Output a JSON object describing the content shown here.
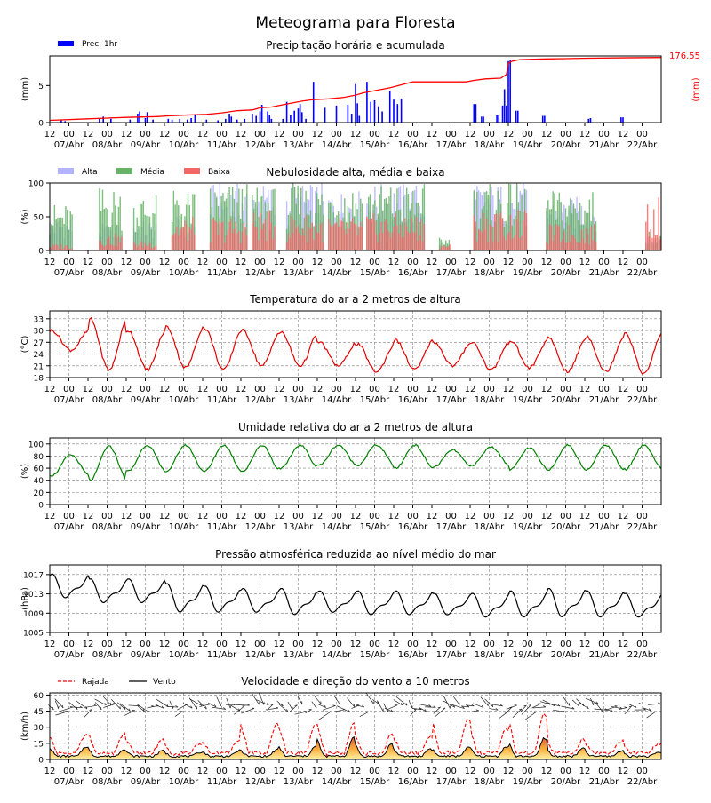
{
  "main_title": "Meteograma para Floresta",
  "colors": {
    "precip_bar": "#0000ff",
    "precip_line": "#ff0000",
    "cloud_high": "#b3b3ff",
    "cloud_mid": "#66b266",
    "cloud_low": "#f26666",
    "temperature": "#e00000",
    "humidity": "#008000",
    "pressure": "#000000",
    "gust": "#ff0000",
    "wind": "#000000",
    "grid": "#808080"
  },
  "time_axis": {
    "start": "2024-04-06 12:00",
    "end": "2024-04-22 12:00",
    "hour_ticks": [
      "12",
      "00",
      "12",
      "00",
      "12",
      "00",
      "12",
      "00",
      "12",
      "00",
      "12",
      "00",
      "12",
      "00",
      "12",
      "00",
      "12",
      "00",
      "12",
      "00",
      "12",
      "00",
      "12",
      "00",
      "12",
      "00",
      "12",
      "00",
      "12",
      "00",
      "12",
      "00"
    ],
    "day_labels": [
      "07/Abr",
      "08/Abr",
      "09/Abr",
      "10/Abr",
      "11/Abr",
      "12/Abr",
      "13/Abr",
      "14/Abr",
      "15/Abr",
      "16/Abr",
      "17/Abr",
      "18/Abr",
      "19/Abr",
      "20/Abr",
      "21/Abr",
      "22/Abr"
    ]
  },
  "chart_data": [
    {
      "id": "precip",
      "type": "bar",
      "title": "Precipitação horária e acumulada",
      "ylabel": "(mm)",
      "ylabel_right": "(mm)",
      "ylim": [
        0,
        9
      ],
      "yticks": [
        0,
        5
      ],
      "total_label": "176.55",
      "legend": [
        "Prec. 1hr"
      ],
      "x_unit": "days since 2024-04-06 12:00",
      "bars": [
        [
          0.3,
          0.3
        ],
        [
          0.4,
          0.2
        ],
        [
          1.3,
          0.6
        ],
        [
          1.4,
          0.8
        ],
        [
          1.6,
          0.5
        ],
        [
          2.1,
          0.4
        ],
        [
          2.3,
          1.2
        ],
        [
          2.35,
          1.5
        ],
        [
          2.5,
          0.6
        ],
        [
          2.55,
          1.4
        ],
        [
          2.7,
          0.4
        ],
        [
          3.1,
          0.5
        ],
        [
          3.2,
          0.4
        ],
        [
          3.4,
          0.5
        ],
        [
          3.6,
          0.4
        ],
        [
          3.7,
          0.6
        ],
        [
          3.8,
          1.0
        ],
        [
          4.1,
          0.4
        ],
        [
          4.4,
          0.3
        ],
        [
          4.6,
          0.5
        ],
        [
          4.7,
          1.2
        ],
        [
          4.75,
          0.8
        ],
        [
          4.9,
          0.4
        ],
        [
          5.1,
          0.5
        ],
        [
          5.3,
          1.2
        ],
        [
          5.4,
          0.9
        ],
        [
          5.5,
          1.5
        ],
        [
          5.55,
          2.4
        ],
        [
          5.7,
          1.5
        ],
        [
          5.75,
          1.0
        ],
        [
          5.8,
          0.5
        ],
        [
          6.1,
          0.5
        ],
        [
          6.2,
          2.8
        ],
        [
          6.3,
          1.0
        ],
        [
          6.4,
          1.6
        ],
        [
          6.5,
          1.9
        ],
        [
          6.55,
          2.5
        ],
        [
          6.6,
          1.4
        ],
        [
          6.7,
          0.5
        ],
        [
          6.9,
          5.5
        ],
        [
          7.2,
          2.0
        ],
        [
          7.5,
          2.3
        ],
        [
          7.8,
          2.4
        ],
        [
          7.9,
          1.2
        ],
        [
          8.0,
          5.2
        ],
        [
          8.05,
          2.6
        ],
        [
          8.1,
          0.9
        ],
        [
          8.3,
          5.5
        ],
        [
          8.4,
          2.8
        ],
        [
          8.5,
          3.0
        ],
        [
          8.6,
          2.2
        ],
        [
          8.7,
          1.5
        ],
        [
          8.9,
          4.2
        ],
        [
          9.0,
          3.1
        ],
        [
          9.1,
          2.5
        ],
        [
          9.2,
          3.2
        ],
        [
          11.1,
          2.5
        ],
        [
          11.15,
          2.5
        ],
        [
          11.3,
          0.8
        ],
        [
          11.35,
          0.8
        ],
        [
          11.7,
          1.0
        ],
        [
          11.75,
          1.0
        ],
        [
          11.85,
          2.3
        ],
        [
          11.9,
          4.5
        ],
        [
          11.95,
          2.3
        ],
        [
          12.0,
          8.3
        ],
        [
          12.05,
          8.5
        ],
        [
          12.2,
          1.6
        ],
        [
          12.25,
          1.6
        ],
        [
          12.9,
          0.9
        ],
        [
          12.95,
          0.9
        ],
        [
          14.1,
          0.5
        ],
        [
          14.15,
          0.6
        ],
        [
          14.95,
          0.7
        ],
        [
          15.0,
          0.7
        ]
      ],
      "accum": [
        [
          0,
          0.3
        ],
        [
          1,
          0.5
        ],
        [
          1.5,
          0.6
        ],
        [
          2,
          0.7
        ],
        [
          2.8,
          0.8
        ],
        [
          3.1,
          0.9
        ],
        [
          3.5,
          1.0
        ],
        [
          4.1,
          1.1
        ],
        [
          4.5,
          1.3
        ],
        [
          4.9,
          1.6
        ],
        [
          5.3,
          1.7
        ],
        [
          5.5,
          2.0
        ],
        [
          5.8,
          2.1
        ],
        [
          6.2,
          2.5
        ],
        [
          6.6,
          2.9
        ],
        [
          6.9,
          3.1
        ],
        [
          7.3,
          3.2
        ],
        [
          7.7,
          3.4
        ],
        [
          8.0,
          3.7
        ],
        [
          8.2,
          4.0
        ],
        [
          8.5,
          4.3
        ],
        [
          8.9,
          4.7
        ],
        [
          9.2,
          5.1
        ],
        [
          9.5,
          5.5
        ],
        [
          10.5,
          5.5
        ],
        [
          10.9,
          5.5
        ],
        [
          11.1,
          5.7
        ],
        [
          11.4,
          5.9
        ],
        [
          11.8,
          6.0
        ],
        [
          11.95,
          6.5
        ],
        [
          12.0,
          8.0
        ],
        [
          12.1,
          8.3
        ],
        [
          12.3,
          8.5
        ],
        [
          13.0,
          8.6
        ],
        [
          14.1,
          8.7
        ],
        [
          15.0,
          8.75
        ],
        [
          16.0,
          8.8
        ]
      ]
    },
    {
      "id": "clouds",
      "type": "bar",
      "title": "Nebulosidade alta, média e baixa",
      "ylabel": "(%)",
      "ylim": [
        0,
        100
      ],
      "yticks": [
        0,
        50,
        100
      ],
      "legend": [
        "Alta",
        "Média",
        "Baixa"
      ],
      "x_unit": "days since 2024-04-06 12:00",
      "periods": [
        [
          0.0,
          0.6,
          50,
          70,
          10
        ],
        [
          1.3,
          1.9,
          40,
          95,
          25
        ],
        [
          2.2,
          2.8,
          45,
          85,
          15
        ],
        [
          3.2,
          3.8,
          50,
          90,
          50
        ],
        [
          4.2,
          5.2,
          100,
          100,
          50
        ],
        [
          5.3,
          5.9,
          100,
          95,
          60
        ],
        [
          6.2,
          7.2,
          100,
          100,
          55
        ],
        [
          7.3,
          8.2,
          90,
          100,
          50
        ],
        [
          8.3,
          9.8,
          100,
          100,
          55
        ],
        [
          10.2,
          10.5,
          10,
          20,
          10
        ],
        [
          11.1,
          12.5,
          100,
          100,
          60
        ],
        [
          13.0,
          14.3,
          80,
          90,
          40
        ],
        [
          15.6,
          16.0,
          20,
          30,
          80
        ]
      ]
    },
    {
      "id": "temp",
      "type": "line",
      "title": "Temperatura do ar a 2 metros de altura",
      "ylabel": "(°C)",
      "ylim": [
        18,
        35
      ],
      "yticks": [
        18,
        21,
        24,
        27,
        30,
        33
      ],
      "x_unit": "days since 2024-04-06 12:00",
      "mins": [
        25,
        20,
        20,
        20.5,
        20,
        21,
        21,
        21,
        19.5,
        20,
        21,
        20,
        20.5,
        19.5,
        19.5,
        19
      ],
      "maxs": [
        30,
        33,
        30,
        31,
        30.5,
        30,
        29.5,
        27,
        26.5,
        27.5,
        27,
        27,
        27.5,
        28,
        28.5,
        29.5
      ]
    },
    {
      "id": "humidity",
      "type": "line",
      "title": "Umidade relativa do ar a 2 metros de altura",
      "ylabel": "(%)",
      "ylim": [
        0,
        110
      ],
      "yticks": [
        0,
        20,
        40,
        60,
        80,
        100
      ],
      "x_unit": "days since 2024-04-06 12:00",
      "mins": [
        48,
        40,
        55,
        55,
        55,
        55,
        60,
        65,
        65,
        60,
        62,
        65,
        58,
        58,
        58,
        58
      ],
      "maxs": [
        82,
        96,
        98,
        98,
        98,
        98,
        98,
        98,
        98,
        98,
        90,
        95,
        93,
        98,
        98,
        98
      ]
    },
    {
      "id": "pressure",
      "type": "line",
      "title": "Pressão atmosférica reduzida ao nível médio do mar",
      "ylabel": "(hPa)",
      "ylim": [
        1005,
        1019
      ],
      "yticks": [
        1005,
        1009,
        1013,
        1017
      ],
      "x_unit": "days since 2024-04-06 12:00",
      "mins": [
        1012,
        1011,
        1011,
        1009,
        1009,
        1009,
        1008.5,
        1009,
        1008.5,
        1008.5,
        1008.5,
        1008,
        1008,
        1008,
        1008,
        1008
      ],
      "maxs": [
        1017,
        1016,
        1016,
        1015,
        1014.5,
        1014,
        1014,
        1013.5,
        1013.5,
        1013.5,
        1013,
        1013,
        1013.5,
        1014,
        1013.5,
        1013
      ]
    },
    {
      "id": "wind",
      "type": "area",
      "title": "Velocidade e direção do vento a 10 metros",
      "ylabel": "(km/h)",
      "ylim": [
        0,
        62
      ],
      "yticks": [
        0,
        15,
        30,
        45,
        60
      ],
      "legend": [
        "Rajada",
        "Vento"
      ],
      "x_unit": "days since 2024-04-06 12:00",
      "wind_peaks": [
        12,
        10,
        8,
        7,
        8,
        9,
        12,
        20,
        15,
        10,
        11,
        12,
        20,
        10,
        8,
        7
      ],
      "gust_peaks": [
        20,
        22,
        15,
        12,
        15,
        30,
        28,
        30,
        20,
        18,
        35,
        25,
        40,
        15,
        14,
        12
      ]
    }
  ]
}
